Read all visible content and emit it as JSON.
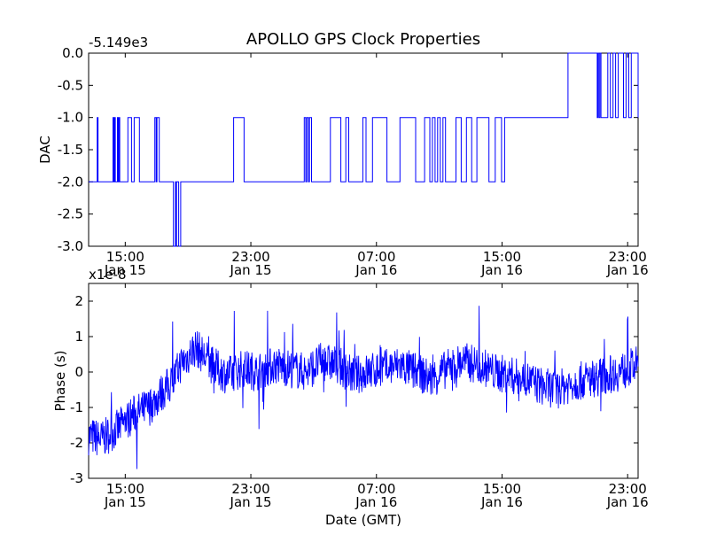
{
  "title": "APOLLO GPS Clock Properties",
  "chart_data": [
    {
      "type": "line",
      "ylabel": "DAC",
      "offset_label": "-5.149e3",
      "ylim": [
        -3.0,
        0.0
      ],
      "y_ticks": [
        "0.0",
        "-0.5",
        "-1.0",
        "-1.5",
        "-2.0",
        "-2.5",
        "-3.0"
      ],
      "x_ticks": [
        {
          "time": "15:00",
          "date": "Jan 15"
        },
        {
          "time": "23:00",
          "date": "Jan 15"
        },
        {
          "time": "07:00",
          "date": "Jan 16"
        },
        {
          "time": "15:00",
          "date": "Jan 16"
        },
        {
          "time": "23:00",
          "date": "Jan 16"
        }
      ],
      "xlim": [
        "Jan 15 12:40",
        "Jan 16 23:40"
      ],
      "color": "#0000ff",
      "series": [
        {
          "x": [
            "Jan 15 12:40",
            "Jan 15 13:10",
            "Jan 15 13:13",
            "Jan 15 13:16",
            "Jan 15 14:10",
            "Jan 15 14:13",
            "Jan 15 14:16",
            "Jan 15 14:19",
            "Jan 15 14:22",
            "Jan 15 14:25",
            "Jan 15 14:30",
            "Jan 15 14:33",
            "Jan 15 14:36",
            "Jan 15 14:39",
            "Jan 15 15:05",
            "Jan 15 15:10",
            "Jan 15 15:20",
            "Jan 15 15:24",
            "Jan 15 15:30",
            "Jan 15 15:34",
            "Jan 15 15:50",
            "Jan 15 15:54",
            "Jan 15 16:50",
            "Jan 15 16:53",
            "Jan 15 16:58",
            "Jan 15 17:01",
            "Jan 15 17:06",
            "Jan 15 17:10",
            "Jan 15 18:00",
            "Jan 15 18:04",
            "Jan 15 18:06",
            "Jan 15 18:12",
            "Jan 15 18:14",
            "Jan 15 18:16",
            "Jan 15 18:20",
            "Jan 15 18:24",
            "Jan 15 18:28",
            "Jan 15 18:32",
            "Jan 15 21:50",
            "Jan 15 21:54",
            "Jan 15 22:30",
            "Jan 15 22:34",
            "Jan 16 02:20",
            "Jan 16 02:24",
            "Jan 16 02:30",
            "Jan 16 02:34",
            "Jan 16 02:40",
            "Jan 16 02:44",
            "Jan 16 02:48",
            "Jan 16 02:52",
            "Jan 16 04:00",
            "Jan 16 04:04",
            "Jan 16 04:40",
            "Jan 16 04:44",
            "Jan 16 05:00",
            "Jan 16 05:03",
            "Jan 16 05:10",
            "Jan 16 05:14",
            "Jan 16 06:05",
            "Jan 16 06:08",
            "Jan 16 06:15",
            "Jan 16 06:20",
            "Jan 16 06:40",
            "Jan 16 06:45",
            "Jan 16 07:30",
            "Jan 16 07:40",
            "Jan 16 08:20",
            "Jan 16 08:30",
            "Jan 16 09:00",
            "Jan 16 09:30",
            "Jan 16 09:40",
            "Jan 16 10:00",
            "Jan 16 10:04",
            "Jan 16 10:20",
            "Jan 16 10:24",
            "Jan 16 10:30",
            "Jan 16 10:34",
            "Jan 16 10:40",
            "Jan 16 10:44",
            "Jan 16 10:50",
            "Jan 16 10:54",
            "Jan 16 11:00",
            "Jan 16 11:04",
            "Jan 16 11:10",
            "Jan 16 11:14",
            "Jan 16 11:20",
            "Jan 16 11:24",
            "Jan 16 12:00",
            "Jan 16 12:04",
            "Jan 16 12:20",
            "Jan 16 12:24",
            "Jan 16 12:40",
            "Jan 16 12:44",
            "Jan 16 13:00",
            "Jan 16 13:04",
            "Jan 16 13:20",
            "Jan 16 13:24",
            "Jan 16 14:05",
            "Jan 16 14:10",
            "Jan 16 14:30",
            "Jan 16 14:34",
            "Jan 16 14:55",
            "Jan 16 14:58",
            "Jan 16 15:10",
            "Jan 16 19:10",
            "Jan 16 19:12",
            "Jan 16 21:00",
            "Jan 16 21:04",
            "Jan 16 21:06",
            "Jan 16 21:10",
            "Jan 16 21:14",
            "Jan 16 21:18",
            "Jan 16 21:40",
            "Jan 16 21:44",
            "Jan 16 21:50",
            "Jan 16 21:54",
            "Jan 16 22:00",
            "Jan 16 22:04",
            "Jan 16 22:10",
            "Jan 16 22:14",
            "Jan 16 22:20",
            "Jan 16 22:24",
            "Jan 16 22:40",
            "Jan 16 22:44",
            "Jan 16 22:50",
            "Jan 16 22:54",
            "Jan 16 23:00",
            "Jan 16 23:04",
            "Jan 16 23:10",
            "Jan 16 23:14",
            "Jan 16 23:25",
            "Jan 16 23:40"
          ],
          "y": [
            -2.0,
            -2.0,
            -1.0,
            -2.0,
            -2.0,
            -1.0,
            -2.0,
            -1.0,
            -2.0,
            -2.0,
            -1.0,
            -2.0,
            -1.0,
            -2.0,
            -2.0,
            -1.0,
            -1.0,
            -2.0,
            -2.0,
            -1.0,
            -1.0,
            -2.0,
            -2.0,
            -1.0,
            -2.0,
            -1.0,
            -1.0,
            -2.0,
            -2.0,
            -3.0,
            -3.0,
            -2.0,
            -3.0,
            -2.0,
            -2.0,
            -3.0,
            -3.0,
            -2.0,
            -2.0,
            -1.0,
            -1.0,
            -2.0,
            -2.0,
            -1.0,
            -2.0,
            -1.0,
            -2.0,
            -1.0,
            -1.0,
            -2.0,
            -2.0,
            -1.0,
            -1.0,
            -2.0,
            -2.0,
            -1.0,
            -1.0,
            -2.0,
            -2.0,
            -1.0,
            -1.0,
            -2.0,
            -2.0,
            -1.0,
            -1.0,
            -2.0,
            -2.0,
            -1.0,
            -1.0,
            -2.0,
            -2.0,
            -2.0,
            -1.0,
            -1.0,
            -2.0,
            -2.0,
            -1.0,
            -1.0,
            -2.0,
            -2.0,
            -1.0,
            -1.0,
            -2.0,
            -2.0,
            -1.0,
            -1.0,
            -2.0,
            -2.0,
            -1.0,
            -1.0,
            -2.0,
            -2.0,
            -1.0,
            -1.0,
            -2.0,
            -2.0,
            -1.0,
            -1.0,
            -2.0,
            -2.0,
            -1.0,
            -1.0,
            -2.0,
            -1.0,
            -1.0,
            0.0,
            0.0,
            -1.0,
            0.0,
            -1.0,
            0.0,
            -1.0,
            -1.0,
            0.0,
            0.0,
            -1.0,
            -1.0,
            0.0,
            0.0,
            -1.0,
            -1.0,
            0.0,
            0.0,
            -1.0,
            -1.0,
            0.0,
            0.0,
            -1.0,
            -1.0,
            0.0,
            0.0,
            -1.0
          ]
        }
      ]
    },
    {
      "type": "line",
      "ylabel": "Phase (s)",
      "xlabel": "Date (GMT)",
      "offset_label": "x1e-8",
      "ylim": [
        -3,
        2.5
      ],
      "y_ticks": [
        "2",
        "1",
        "0",
        "-1",
        "-2",
        "-3"
      ],
      "x_ticks": [
        {
          "time": "15:00",
          "date": "Jan 15"
        },
        {
          "time": "23:00",
          "date": "Jan 15"
        },
        {
          "time": "07:00",
          "date": "Jan 16"
        },
        {
          "time": "15:00",
          "date": "Jan 16"
        },
        {
          "time": "23:00",
          "date": "Jan 16"
        }
      ],
      "xlim": [
        "Jan 15 12:40",
        "Jan 16 23:40"
      ],
      "color": "#0000ff",
      "series": [
        {
          "x": [
            "Jan 15 12:40",
            "Jan 15 13:30",
            "Jan 15 14:30",
            "Jan 15 15:30",
            "Jan 15 16:30",
            "Jan 15 17:30",
            "Jan 15 18:00",
            "Jan 15 18:30",
            "Jan 15 19:30",
            "Jan 15 20:30",
            "Jan 15 21:30",
            "Jan 15 22:30",
            "Jan 15 23:30",
            "Jan 16 00:30",
            "Jan 16 01:30",
            "Jan 16 02:30",
            "Jan 16 03:30",
            "Jan 16 04:30",
            "Jan 16 05:30",
            "Jan 16 06:30",
            "Jan 16 07:30",
            "Jan 16 08:30",
            "Jan 16 09:30",
            "Jan 16 10:30",
            "Jan 16 11:30",
            "Jan 16 12:30",
            "Jan 16 13:30",
            "Jan 16 14:30",
            "Jan 16 15:30",
            "Jan 16 16:30",
            "Jan 16 17:30",
            "Jan 16 18:30",
            "Jan 16 19:30",
            "Jan 16 20:30",
            "Jan 16 21:30",
            "Jan 16 22:30",
            "Jan 16 23:40"
          ],
          "y": [
            -1.8,
            -1.9,
            -1.6,
            -1.2,
            -1.0,
            -0.5,
            -0.3,
            0.2,
            0.7,
            0.2,
            -0.1,
            0.1,
            0.0,
            0.2,
            0.1,
            0.0,
            0.3,
            0.2,
            -0.1,
            0.0,
            0.1,
            0.2,
            0.0,
            -0.2,
            0.1,
            0.3,
            0.2,
            0.0,
            -0.1,
            -0.2,
            -0.4,
            -0.5,
            -0.3,
            -0.2,
            -0.1,
            0.0,
            0.2
          ]
        }
      ]
    }
  ]
}
